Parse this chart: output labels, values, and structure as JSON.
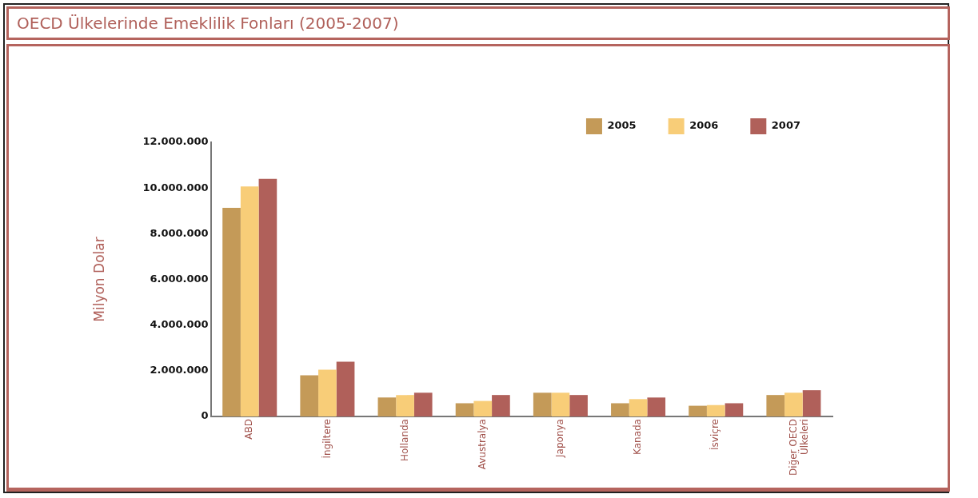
{
  "chart_data": {
    "type": "bar",
    "title": "OECD Ülkelerinde Emeklilik Fonları (2005-2007)",
    "ylabel": "Milyon Dolar",
    "categories": [
      "ABD",
      "İngiltere",
      "Hollanda",
      "Avustralya",
      "Japonya",
      "Kanada",
      "İsviçre",
      "Diğer OECD Ülkeleri"
    ],
    "series": [
      {
        "name": "2005",
        "color": "#c49a58",
        "values": [
          9130000,
          1800000,
          830000,
          580000,
          1040000,
          580000,
          470000,
          940000
        ]
      },
      {
        "name": "2006",
        "color": "#f8cd78",
        "values": [
          10070000,
          2050000,
          940000,
          680000,
          1040000,
          760000,
          500000,
          1040000
        ]
      },
      {
        "name": "2007",
        "color": "#b0605a",
        "values": [
          10400000,
          2400000,
          1040000,
          940000,
          940000,
          830000,
          580000,
          1150000
        ]
      }
    ],
    "ylim": [
      0,
      12000000
    ],
    "yticks": [
      {
        "value": 0,
        "label": "0"
      },
      {
        "value": 2000000,
        "label": "2.000.000"
      },
      {
        "value": 4000000,
        "label": "4.000.000"
      },
      {
        "value": 6000000,
        "label": "6.000.000"
      },
      {
        "value": 8000000,
        "label": "8.000.000"
      },
      {
        "value": 10000000,
        "label": "10.000.000"
      },
      {
        "value": 12000000,
        "label": "12.000.000"
      }
    ],
    "grid": false,
    "legend": "top right"
  }
}
